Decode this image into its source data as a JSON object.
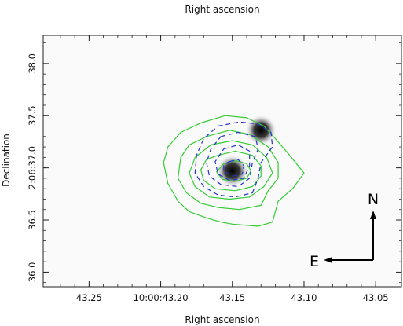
{
  "chart_data": {
    "type": "contour",
    "title": "Right ascension",
    "xlabel": "Right ascension",
    "ylabel": "Declination",
    "x_ticks": [
      {
        "value": 43.25,
        "label": "43.25"
      },
      {
        "value": 43.2,
        "label": "10:00:43.20"
      },
      {
        "value": 43.15,
        "label": "43.15"
      },
      {
        "value": 43.1,
        "label": "43.10"
      },
      {
        "value": 43.05,
        "label": "43.05"
      }
    ],
    "y_ticks": [
      {
        "value": 38.0,
        "label": "38.0"
      },
      {
        "value": 37.5,
        "label": "37.5"
      },
      {
        "value": 37.0,
        "label": "2:06:37.0"
      },
      {
        "value": 36.5,
        "label": "36.5"
      },
      {
        "value": 36.0,
        "label": "36.0"
      }
    ],
    "xlim": [
      43.282,
      43.032
    ],
    "ylim": [
      35.86,
      38.27
    ],
    "grid": false,
    "sources": [
      {
        "ra": 43.15,
        "dec": 36.97,
        "strength": 1.0
      },
      {
        "ra": 43.13,
        "dec": 37.36,
        "strength": 0.85
      }
    ],
    "contour_sets": [
      {
        "color": "#33cc33",
        "style": "solid",
        "levels": [
          [
            [
              43.172,
              37.43
            ],
            [
              43.155,
              37.5
            ],
            [
              43.14,
              37.48
            ],
            [
              43.128,
              37.4
            ],
            [
              43.12,
              37.28
            ],
            [
              43.11,
              37.12
            ],
            [
              43.1,
              36.95
            ],
            [
              43.108,
              36.8
            ],
            [
              43.118,
              36.68
            ],
            [
              43.122,
              36.48
            ],
            [
              43.132,
              36.44
            ],
            [
              43.15,
              36.46
            ],
            [
              43.158,
              36.48
            ],
            [
              43.168,
              36.52
            ],
            [
              43.18,
              36.58
            ],
            [
              43.188,
              36.68
            ],
            [
              43.195,
              36.85
            ],
            [
              43.198,
              37.05
            ],
            [
              43.195,
              37.2
            ],
            [
              43.186,
              37.34
            ]
          ],
          [
            [
              43.168,
              37.3
            ],
            [
              43.152,
              37.36
            ],
            [
              43.138,
              37.32
            ],
            [
              43.125,
              37.2
            ],
            [
              43.118,
              37.05
            ],
            [
              43.118,
              36.9
            ],
            [
              43.125,
              36.78
            ],
            [
              43.13,
              36.64
            ],
            [
              43.145,
              36.6
            ],
            [
              43.16,
              36.62
            ],
            [
              43.172,
              36.66
            ],
            [
              43.182,
              36.76
            ],
            [
              43.188,
              36.9
            ],
            [
              43.186,
              37.1
            ],
            [
              43.18,
              37.22
            ]
          ],
          [
            [
              43.165,
              37.22
            ],
            [
              43.15,
              37.26
            ],
            [
              43.136,
              37.22
            ],
            [
              43.126,
              37.1
            ],
            [
              43.122,
              36.95
            ],
            [
              43.128,
              36.82
            ],
            [
              43.138,
              36.72
            ],
            [
              43.152,
              36.7
            ],
            [
              43.166,
              36.72
            ],
            [
              43.176,
              36.82
            ],
            [
              43.18,
              36.95
            ],
            [
              43.176,
              37.1
            ]
          ],
          [
            [
              43.16,
              37.12
            ],
            [
              43.148,
              37.16
            ],
            [
              43.136,
              37.12
            ],
            [
              43.13,
              37.02
            ],
            [
              43.13,
              36.92
            ],
            [
              43.136,
              36.82
            ],
            [
              43.148,
              36.78
            ],
            [
              43.162,
              36.8
            ],
            [
              43.17,
              36.88
            ],
            [
              43.172,
              36.98
            ],
            [
              43.168,
              37.08
            ]
          ],
          [
            [
              43.156,
              37.04
            ],
            [
              43.148,
              37.07
            ],
            [
              43.14,
              37.04
            ],
            [
              43.137,
              36.97
            ],
            [
              43.14,
              36.9
            ],
            [
              43.148,
              36.87
            ],
            [
              43.157,
              36.89
            ],
            [
              43.161,
              36.96
            ]
          ]
        ]
      },
      {
        "color": "#2233cc",
        "style": "dashed",
        "levels": [
          [
            [
              43.16,
              37.4
            ],
            [
              43.145,
              37.44
            ],
            [
              43.132,
              37.42
            ],
            [
              43.123,
              37.34
            ],
            [
              43.122,
              37.2
            ],
            [
              43.13,
              37.05
            ],
            [
              43.132,
              36.9
            ],
            [
              43.136,
              36.76
            ],
            [
              43.148,
              36.72
            ],
            [
              43.16,
              36.74
            ],
            [
              43.17,
              36.82
            ],
            [
              43.176,
              36.95
            ],
            [
              43.175,
              37.12
            ],
            [
              43.17,
              37.28
            ]
          ],
          [
            [
              43.158,
              37.3
            ],
            [
              43.146,
              37.34
            ],
            [
              43.134,
              37.3
            ],
            [
              43.132,
              37.18
            ],
            [
              43.136,
              37.05
            ],
            [
              43.138,
              36.9
            ],
            [
              43.146,
              36.82
            ],
            [
              43.158,
              36.84
            ],
            [
              43.166,
              36.92
            ],
            [
              43.168,
              37.05
            ],
            [
              43.165,
              37.18
            ]
          ],
          [
            [
              43.156,
              37.18
            ],
            [
              43.146,
              37.22
            ],
            [
              43.138,
              37.16
            ],
            [
              43.138,
              37.02
            ],
            [
              43.142,
              36.9
            ],
            [
              43.152,
              36.88
            ],
            [
              43.16,
              36.94
            ],
            [
              43.162,
              37.06
            ]
          ],
          [
            [
              43.152,
              37.06
            ],
            [
              43.146,
              37.08
            ],
            [
              43.142,
              37.02
            ],
            [
              43.143,
              36.94
            ],
            [
              43.15,
              36.92
            ],
            [
              43.156,
              36.97
            ],
            [
              43.156,
              37.03
            ]
          ]
        ]
      }
    ],
    "annotations": {
      "north_label": "N",
      "east_label": "E"
    }
  }
}
